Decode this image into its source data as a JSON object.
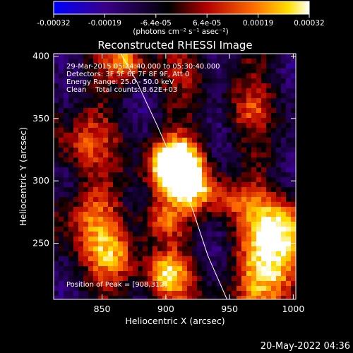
{
  "chart_data": {
    "type": "heatmap",
    "title": "Reconstructed RHESSI Image",
    "xlabel": "Heliocentric X (arcsec)",
    "ylabel": "Heliocentric Y (arcsec)",
    "xlim": [
      812,
      1002
    ],
    "ylim": [
      205,
      402
    ],
    "x_ticks": [
      850,
      900,
      950,
      1000
    ],
    "y_ticks": [
      250,
      300,
      350,
      400
    ],
    "colorbar": {
      "range": [
        -0.00032,
        0.00032
      ],
      "tick_labels": [
        "-0.00032",
        "-0.00019",
        "-6.4e-05",
        "6.4e-05",
        "0.00019",
        "0.00032"
      ],
      "unit_label": "(photons cm⁻² s⁻¹ asec⁻²)",
      "colormap": [
        "#0000ff",
        "#3a008a",
        "#000000",
        "#b40000",
        "#ff6a00",
        "#ffe000",
        "#ffffff"
      ]
    },
    "annotations": [
      "29-Mar-2015 05:24:40.000 to 05:30:40.000",
      "Detectors: 3F 5F 6F 7F 8F 9F, Att 0",
      "Energy Range: 25.0 - 50.0 keV",
      "Clean    Total counts: 8.62E+03",
      "Position of Peak = [908,312]"
    ],
    "peak": {
      "x": 908,
      "y": 312
    },
    "grid": false,
    "limb_curve": [
      [
        863,
        405
      ],
      [
        877,
        380
      ],
      [
        893,
        345
      ],
      [
        908,
        310
      ],
      [
        921,
        277
      ],
      [
        933,
        240
      ],
      [
        948,
        205
      ]
    ]
  },
  "footer": {
    "timestamp": "20-May-2022 04:36"
  }
}
